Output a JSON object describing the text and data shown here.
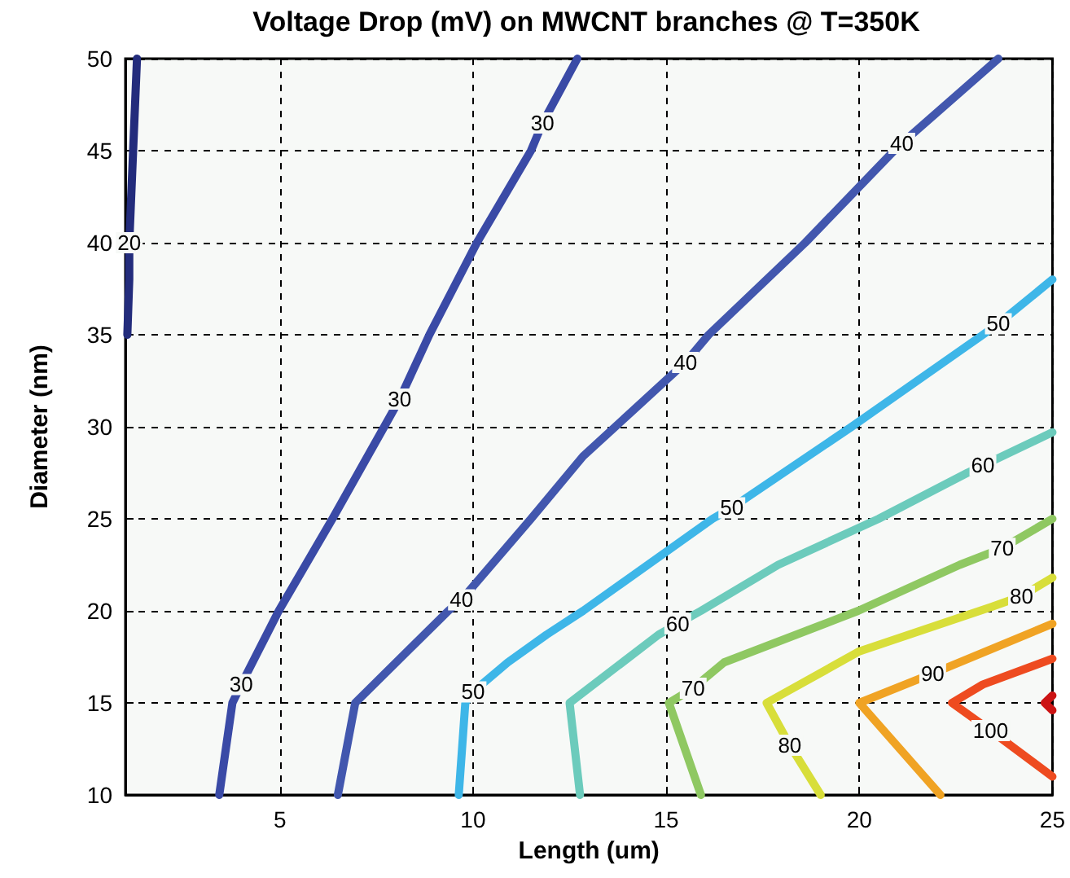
{
  "chart_data": {
    "type": "line",
    "title": "Voltage Drop (mV) on MWCNT branches @ T=350K",
    "xlabel": "Length (um)",
    "ylabel": "Diameter (nm)",
    "xlim": [
      1,
      25
    ],
    "xticks": [
      5,
      10,
      15,
      20,
      25
    ],
    "ylim": [
      10,
      50
    ],
    "yticks": [
      10,
      15,
      20,
      25,
      30,
      35,
      40,
      45,
      50
    ],
    "grid": true,
    "marker": "none",
    "line_style": "solid",
    "series": [
      {
        "color": "#232c7c",
        "x": [
          1.05,
          1.1,
          1.1,
          1.2,
          1.3
        ],
        "values": [
          35,
          38,
          40,
          45,
          50
        ]
      },
      {
        "color": "#3a4aa6",
        "x": [
          3.43,
          3.77,
          4.0,
          4.97,
          6.36,
          7.7,
          8.1,
          8.87,
          10.1,
          11.5,
          11.8,
          12.7
        ],
        "values": [
          10,
          15,
          16,
          20,
          25,
          30,
          31.5,
          35,
          40,
          45,
          46.5,
          50
        ]
      },
      {
        "color": "#4257ae",
        "x": [
          6.5,
          6.95,
          9.36,
          9.7,
          11.5,
          12.85,
          15.5,
          16.1,
          18.6,
          20.9,
          21.1,
          23.6
        ],
        "values": [
          10,
          15,
          20,
          20.6,
          25,
          28.4,
          33.5,
          35,
          40,
          45,
          45.4,
          50
        ]
      },
      {
        "color": "#3eb6e8",
        "x": [
          9.63,
          9.8,
          10.0,
          10.9,
          11.9,
          12.85,
          16.2,
          16.7,
          19.8,
          23.2,
          23.6,
          25
        ],
        "values": [
          10,
          15,
          15.6,
          17.2,
          18.7,
          20,
          25,
          25.6,
          30,
          35,
          35.6,
          38
        ]
      },
      {
        "color": "#6ccbbc",
        "x": [
          12.77,
          12.5,
          14.8,
          15.3,
          15.9,
          17.9,
          20.5,
          22.8,
          23.2,
          25
        ],
        "values": [
          10,
          15,
          18.7,
          19.3,
          20,
          22.5,
          25,
          27.5,
          27.9,
          29.7
        ]
      },
      {
        "color": "#8fc862",
        "x": [
          15.9,
          15.07,
          15.7,
          16.5,
          19.97,
          22.6,
          23.7,
          25
        ],
        "values": [
          10,
          15,
          15.8,
          17.2,
          20,
          22.5,
          23.4,
          25
        ]
      },
      {
        "color": "#d8de3a",
        "x": [
          19.0,
          18.2,
          17.6,
          20.0,
          23.4,
          24.2,
          25
        ],
        "values": [
          10,
          12.7,
          15,
          17.8,
          20.2,
          20.8,
          21.8
        ]
      },
      {
        "color": "#f0a324",
        "x": [
          22.1,
          20.0,
          21.9,
          25
        ],
        "values": [
          10,
          15,
          16.6,
          19.3
        ]
      },
      {
        "color": "#ee4b20",
        "x": [
          25,
          23.4,
          22.4,
          23.2,
          25
        ],
        "values": [
          11,
          13.5,
          15,
          16,
          17.4
        ]
      },
      {
        "color": "#cc1414",
        "x": [
          25,
          24.8,
          25
        ],
        "values": [
          14.6,
          15,
          15.4
        ]
      }
    ],
    "annotations": [
      {
        "text": "20",
        "x": 1.1,
        "y": 40
      },
      {
        "text": "30",
        "x": 4.0,
        "y": 16
      },
      {
        "text": "30",
        "x": 8.1,
        "y": 31.5
      },
      {
        "text": "30",
        "x": 11.8,
        "y": 46.5
      },
      {
        "text": "40",
        "x": 9.7,
        "y": 20.6
      },
      {
        "text": "40",
        "x": 15.5,
        "y": 33.5
      },
      {
        "text": "40",
        "x": 21.1,
        "y": 45.4
      },
      {
        "text": "50",
        "x": 10.0,
        "y": 15.6
      },
      {
        "text": "50",
        "x": 16.7,
        "y": 25.6
      },
      {
        "text": "50",
        "x": 23.6,
        "y": 35.6
      },
      {
        "text": "60",
        "x": 15.3,
        "y": 19.3
      },
      {
        "text": "60",
        "x": 23.2,
        "y": 27.9
      },
      {
        "text": "70",
        "x": 15.7,
        "y": 15.8
      },
      {
        "text": "70",
        "x": 23.7,
        "y": 23.4
      },
      {
        "text": "80",
        "x": 18.2,
        "y": 12.7
      },
      {
        "text": "80",
        "x": 24.2,
        "y": 20.8
      },
      {
        "text": "90",
        "x": 21.9,
        "y": 16.6
      },
      {
        "text": "100",
        "x": 23.4,
        "y": 13.5
      }
    ]
  }
}
